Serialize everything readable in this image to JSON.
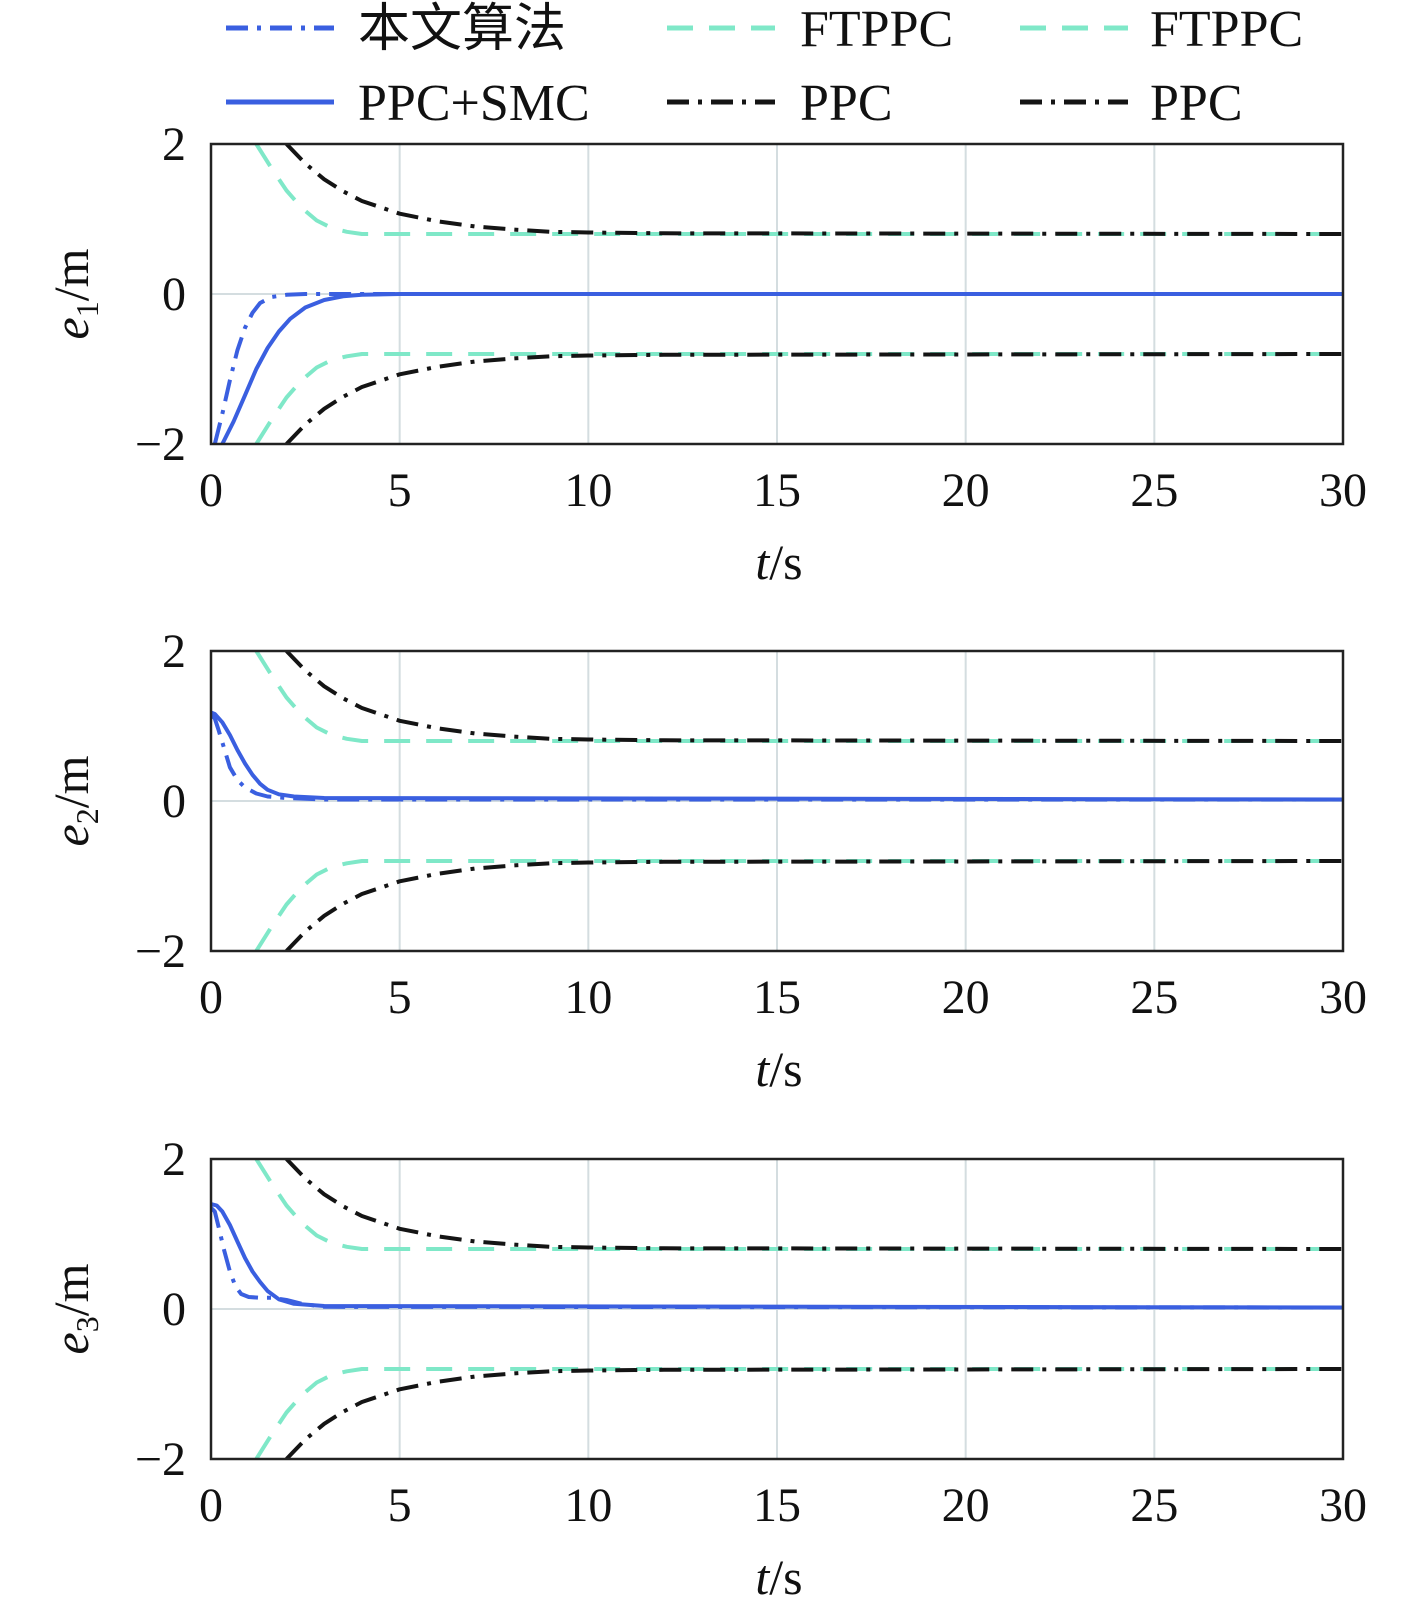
{
  "colors": {
    "proposed": "#3a5fe0",
    "ppc_smc": "#3a5fe0",
    "ftppc": "#7fe8c8",
    "ppc": "#141414",
    "grid": "#d4dde0",
    "axis": "#222222"
  },
  "legend": {
    "entries": [
      {
        "label": "本文算法",
        "style": "dashdot",
        "color_key": "proposed"
      },
      {
        "label": "FTPPC",
        "style": "dashed",
        "color_key": "ftppc"
      },
      {
        "label": "FTPPC",
        "style": "dashed",
        "color_key": "ftppc"
      },
      {
        "label": "PPC+SMC",
        "style": "solid",
        "color_key": "ppc_smc"
      },
      {
        "label": "PPC",
        "style": "dashdot",
        "color_key": "ppc"
      },
      {
        "label": "PPC",
        "style": "dashdot",
        "color_key": "ppc"
      }
    ]
  },
  "chart_data": [
    {
      "type": "line",
      "ylabel_var": "e",
      "ylabel_sub": "1",
      "ylabel_unit": "/m",
      "xlabel_var": "t",
      "xlabel_unit": "/s",
      "xlim": [
        0,
        30
      ],
      "ylim": [
        -2,
        2
      ],
      "xticks": [
        "0",
        "5",
        "10",
        "15",
        "20",
        "25",
        "30"
      ],
      "yticks": [
        "2",
        "0",
        "−2"
      ],
      "ytick_values": [
        2,
        0,
        -2
      ],
      "series": [
        {
          "name": "本文算法",
          "x": [
            0.1,
            0.3,
            0.5,
            0.7,
            0.9,
            1.1,
            1.3,
            1.6,
            2.0,
            2.5,
            3.0,
            4.0,
            30
          ],
          "y": [
            -2.0,
            -1.6,
            -1.15,
            -0.75,
            -0.45,
            -0.25,
            -0.12,
            -0.04,
            -0.01,
            0.0,
            0.0,
            0.0,
            0.0
          ]
        },
        {
          "name": "PPC+SMC",
          "x": [
            0.3,
            0.6,
            0.9,
            1.2,
            1.5,
            1.8,
            2.1,
            2.5,
            3.0,
            3.5,
            4.0,
            5.0,
            30
          ],
          "y": [
            -2.0,
            -1.7,
            -1.35,
            -1.0,
            -0.72,
            -0.5,
            -0.33,
            -0.18,
            -0.08,
            -0.03,
            -0.01,
            0.0,
            0.0
          ]
        },
        {
          "name": "FTPPC",
          "x": [
            1.2,
            1.6,
            2.0,
            2.4,
            2.8,
            3.2,
            3.6,
            4.0,
            5.0,
            6.0,
            8.0,
            30
          ],
          "y": [
            2.0,
            1.68,
            1.38,
            1.15,
            0.98,
            0.88,
            0.83,
            0.8,
            0.8,
            0.8,
            0.8,
            0.8
          ]
        },
        {
          "name": "FTPPC",
          "x": [
            1.2,
            1.6,
            2.0,
            2.4,
            2.8,
            3.2,
            3.6,
            4.0,
            5.0,
            6.0,
            8.0,
            30
          ],
          "y": [
            -2.0,
            -1.68,
            -1.38,
            -1.15,
            -0.98,
            -0.88,
            -0.83,
            -0.8,
            -0.8,
            -0.8,
            -0.8,
            -0.8
          ]
        },
        {
          "name": "PPC",
          "x": [
            2.0,
            2.5,
            3.0,
            3.5,
            4.0,
            5.0,
            6.0,
            7.0,
            8.0,
            9.0,
            10.0,
            12.0,
            30
          ],
          "y": [
            2.0,
            1.74,
            1.53,
            1.37,
            1.24,
            1.07,
            0.97,
            0.9,
            0.86,
            0.83,
            0.82,
            0.81,
            0.8
          ]
        },
        {
          "name": "PPC",
          "x": [
            2.0,
            2.5,
            3.0,
            3.5,
            4.0,
            5.0,
            6.0,
            7.0,
            8.0,
            9.0,
            10.0,
            12.0,
            30
          ],
          "y": [
            -2.0,
            -1.74,
            -1.53,
            -1.37,
            -1.24,
            -1.07,
            -0.97,
            -0.9,
            -0.86,
            -0.83,
            -0.82,
            -0.81,
            -0.8
          ]
        }
      ]
    },
    {
      "type": "line",
      "ylabel_var": "e",
      "ylabel_sub": "2",
      "ylabel_unit": "/m",
      "xlabel_var": "t",
      "xlabel_unit": "/s",
      "xlim": [
        0,
        30
      ],
      "ylim": [
        -2,
        2
      ],
      "xticks": [
        "0",
        "5",
        "10",
        "15",
        "20",
        "25",
        "30"
      ],
      "yticks": [
        "2",
        "0",
        "−2"
      ],
      "ytick_values": [
        2,
        0,
        -2
      ],
      "series": [
        {
          "name": "本文算法",
          "x": [
            0.0,
            0.1,
            0.2,
            0.35,
            0.5,
            0.7,
            0.9,
            1.2,
            1.5,
            2.0,
            3.0,
            30
          ],
          "y": [
            1.15,
            1.1,
            0.95,
            0.7,
            0.45,
            0.28,
            0.18,
            0.1,
            0.06,
            0.04,
            0.02,
            0.02
          ]
        },
        {
          "name": "PPC+SMC",
          "x": [
            0.0,
            0.1,
            0.3,
            0.5,
            0.7,
            0.9,
            1.1,
            1.3,
            1.5,
            1.8,
            2.2,
            3.0,
            30
          ],
          "y": [
            1.18,
            1.16,
            1.05,
            0.88,
            0.68,
            0.5,
            0.35,
            0.23,
            0.15,
            0.09,
            0.06,
            0.04,
            0.02
          ]
        },
        {
          "name": "FTPPC",
          "x": [
            1.2,
            1.6,
            2.0,
            2.4,
            2.8,
            3.2,
            3.6,
            4.0,
            5.0,
            6.0,
            8.0,
            30
          ],
          "y": [
            2.0,
            1.68,
            1.38,
            1.15,
            0.98,
            0.88,
            0.83,
            0.8,
            0.8,
            0.8,
            0.8,
            0.8
          ]
        },
        {
          "name": "FTPPC",
          "x": [
            1.2,
            1.6,
            2.0,
            2.4,
            2.8,
            3.2,
            3.6,
            4.0,
            5.0,
            6.0,
            8.0,
            30
          ],
          "y": [
            -2.0,
            -1.68,
            -1.38,
            -1.15,
            -0.98,
            -0.88,
            -0.83,
            -0.8,
            -0.8,
            -0.8,
            -0.8,
            -0.8
          ]
        },
        {
          "name": "PPC",
          "x": [
            2.0,
            2.5,
            3.0,
            3.5,
            4.0,
            5.0,
            6.0,
            7.0,
            8.0,
            9.0,
            10.0,
            12.0,
            30
          ],
          "y": [
            2.0,
            1.74,
            1.53,
            1.37,
            1.24,
            1.07,
            0.97,
            0.9,
            0.86,
            0.83,
            0.82,
            0.81,
            0.8
          ]
        },
        {
          "name": "PPC",
          "x": [
            2.0,
            2.5,
            3.0,
            3.5,
            4.0,
            5.0,
            6.0,
            7.0,
            8.0,
            9.0,
            10.0,
            12.0,
            30
          ],
          "y": [
            -2.0,
            -1.74,
            -1.53,
            -1.37,
            -1.24,
            -1.07,
            -0.97,
            -0.9,
            -0.86,
            -0.83,
            -0.82,
            -0.81,
            -0.8
          ]
        }
      ]
    },
    {
      "type": "line",
      "ylabel_var": "e",
      "ylabel_sub": "3",
      "ylabel_unit": "/m",
      "xlabel_var": "t",
      "xlabel_unit": "/s",
      "xlim": [
        0,
        30
      ],
      "ylim": [
        -2,
        2
      ],
      "xticks": [
        "0",
        "5",
        "10",
        "15",
        "20",
        "25",
        "30"
      ],
      "yticks": [
        "2",
        "0",
        "−2"
      ],
      "ytick_values": [
        2,
        0,
        -2
      ],
      "series": [
        {
          "name": "本文算法",
          "x": [
            0.0,
            0.1,
            0.2,
            0.35,
            0.5,
            0.65,
            0.8,
            1.0,
            1.3,
            1.6,
            2.0,
            2.4,
            3.0,
            30
          ],
          "y": [
            1.35,
            1.3,
            1.1,
            0.78,
            0.5,
            0.3,
            0.2,
            0.16,
            0.15,
            0.15,
            0.12,
            0.07,
            0.03,
            0.02
          ]
        },
        {
          "name": "PPC+SMC",
          "x": [
            0.0,
            0.15,
            0.3,
            0.5,
            0.7,
            0.9,
            1.1,
            1.3,
            1.5,
            1.8,
            2.2,
            3.0,
            30
          ],
          "y": [
            1.4,
            1.38,
            1.3,
            1.12,
            0.9,
            0.68,
            0.5,
            0.36,
            0.24,
            0.13,
            0.07,
            0.04,
            0.02
          ]
        },
        {
          "name": "FTPPC",
          "x": [
            1.2,
            1.6,
            2.0,
            2.4,
            2.8,
            3.2,
            3.6,
            4.0,
            5.0,
            6.0,
            8.0,
            30
          ],
          "y": [
            2.0,
            1.68,
            1.38,
            1.15,
            0.98,
            0.88,
            0.83,
            0.8,
            0.8,
            0.8,
            0.8,
            0.8
          ]
        },
        {
          "name": "FTPPC",
          "x": [
            1.2,
            1.6,
            2.0,
            2.4,
            2.8,
            3.2,
            3.6,
            4.0,
            5.0,
            6.0,
            8.0,
            30
          ],
          "y": [
            -2.0,
            -1.68,
            -1.38,
            -1.15,
            -0.98,
            -0.88,
            -0.83,
            -0.8,
            -0.8,
            -0.8,
            -0.8,
            -0.8
          ]
        },
        {
          "name": "PPC",
          "x": [
            2.0,
            2.5,
            3.0,
            3.5,
            4.0,
            5.0,
            6.0,
            7.0,
            8.0,
            9.0,
            10.0,
            12.0,
            30
          ],
          "y": [
            2.0,
            1.74,
            1.53,
            1.37,
            1.24,
            1.07,
            0.97,
            0.9,
            0.86,
            0.83,
            0.82,
            0.81,
            0.8
          ]
        },
        {
          "name": "PPC",
          "x": [
            2.0,
            2.5,
            3.0,
            3.5,
            4.0,
            5.0,
            6.0,
            7.0,
            8.0,
            9.0,
            10.0,
            12.0,
            30
          ],
          "y": [
            -2.0,
            -1.74,
            -1.53,
            -1.37,
            -1.24,
            -1.07,
            -0.97,
            -0.9,
            -0.86,
            -0.83,
            -0.82,
            -0.81,
            -0.8
          ]
        }
      ]
    }
  ]
}
